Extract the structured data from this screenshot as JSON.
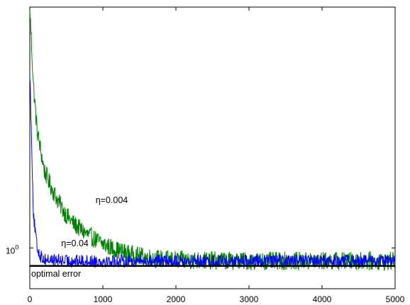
{
  "chart_data": {
    "type": "line",
    "title": "",
    "xlabel": "",
    "ylabel": "",
    "xlim": [
      0,
      5000
    ],
    "ylim_log10": [
      -0.22,
      1.3
    ],
    "y_scale": "log",
    "grid": false,
    "legend": "none",
    "x_ticks": [
      0,
      1000,
      2000,
      3000,
      4000,
      5000
    ],
    "x_tick_labels": [
      "0",
      "1000",
      "2000",
      "3000",
      "4000",
      "5000"
    ],
    "y_ticks": [
      1
    ],
    "y_tick_label_base": "10",
    "y_tick_label_exp": "0",
    "series": [
      {
        "label_text": "η=0.004",
        "color": "#008000",
        "curve": {
          "x": [
            0,
            50,
            100,
            200,
            300,
            400,
            500,
            600,
            800,
            1000,
            1200,
            1400,
            1600,
            1800,
            2000,
            2500,
            3000,
            3500,
            4000,
            4500,
            5000
          ],
          "y": [
            20,
            7.5,
            4.3,
            2.6,
            2.1,
            1.75,
            1.5,
            1.35,
            1.17,
            1.05,
            0.97,
            0.92,
            0.89,
            0.87,
            0.86,
            0.855,
            0.85,
            0.85,
            0.85,
            0.85,
            0.85
          ]
        },
        "noise_amplitude_log10": 0.05
      },
      {
        "label_text": "η=0.04",
        "color": "#0000ff",
        "curve": {
          "x": [
            0,
            20,
            50,
            100,
            150,
            200,
            300,
            500,
            1000,
            2000,
            3000,
            4000,
            5000
          ],
          "y": [
            9,
            4.5,
            1.5,
            1.0,
            0.9,
            0.87,
            0.86,
            0.85,
            0.85,
            0.85,
            0.85,
            0.85,
            0.85
          ]
        },
        "noise_amplitude_log10": 0.035
      }
    ],
    "reference_line": {
      "label_text": "optimal error",
      "y": 0.8,
      "color": "#000000"
    }
  }
}
